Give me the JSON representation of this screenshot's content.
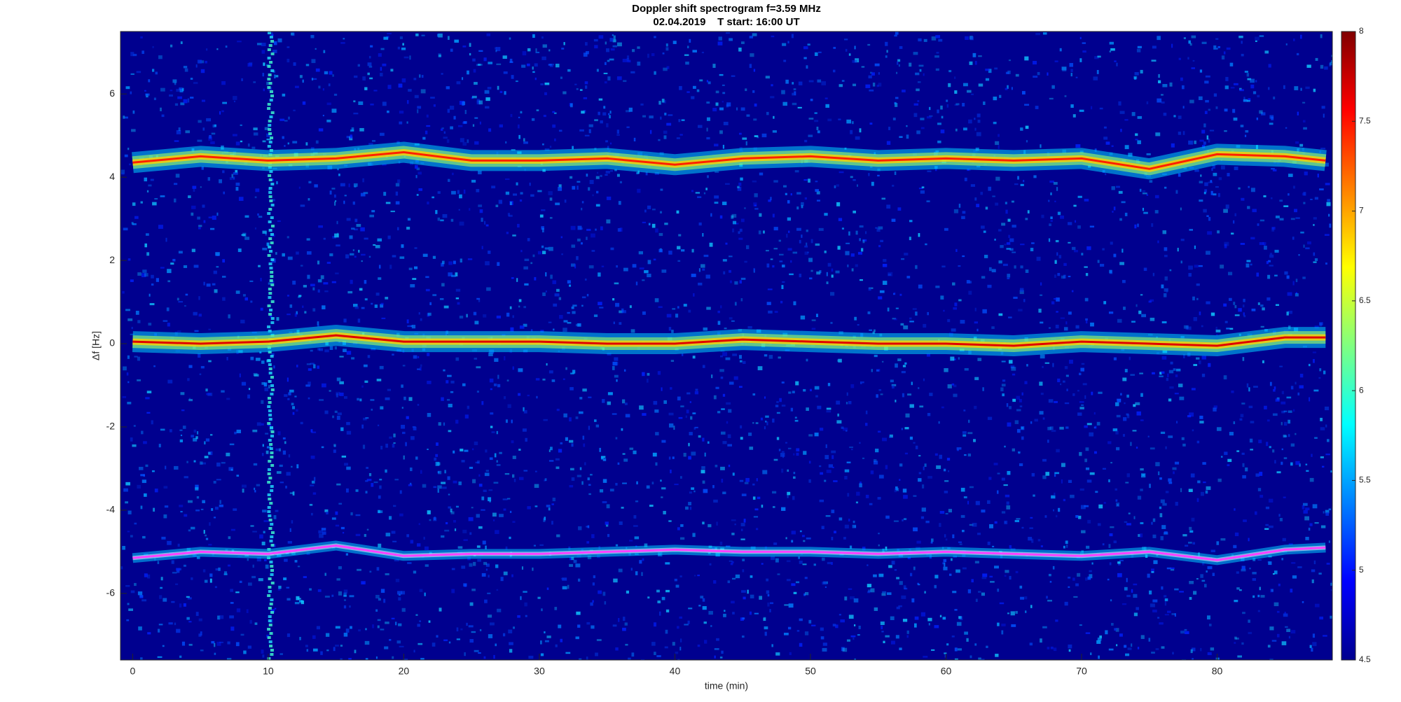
{
  "chart_data": {
    "type": "spectrogram",
    "title": "Doppler shift spectrogram f=3.59 MHz",
    "subtitle": "02.04.2019    T start: 16:00 UT",
    "x_label": "time (min)",
    "y_label": "Δf [Hz]",
    "xlim": [
      -0.9,
      88.5
    ],
    "xticks": [
      0,
      10,
      20,
      30,
      40,
      50,
      60,
      70,
      80
    ],
    "ylim": [
      -7.6,
      7.5
    ],
    "yticks": [
      -6,
      -4,
      -2,
      0,
      2,
      4,
      6
    ],
    "colormap": "jet",
    "clim": [
      4.5,
      8
    ],
    "cticks": [
      4.5,
      5,
      5.5,
      6,
      6.5,
      7,
      7.5,
      8
    ],
    "x": [
      0,
      5,
      10,
      15,
      20,
      25,
      30,
      35,
      40,
      45,
      50,
      55,
      60,
      65,
      70,
      75,
      80,
      85,
      88
    ],
    "series": [
      {
        "color": "#ff2000",
        "values": [
          4.35,
          4.5,
          4.4,
          4.45,
          4.6,
          4.4,
          4.4,
          4.45,
          4.3,
          4.45,
          4.5,
          4.4,
          4.45,
          4.4,
          4.45,
          4.2,
          4.55,
          4.5,
          4.4
        ]
      },
      {
        "color": "#e00000",
        "values": [
          0.05,
          0.0,
          0.05,
          0.2,
          0.05,
          0.05,
          0.05,
          0.0,
          0.0,
          0.1,
          0.05,
          0.0,
          0.0,
          -0.05,
          0.05,
          0.0,
          -0.05,
          0.15,
          0.15
        ]
      },
      {
        "color": "#ff40ff",
        "values": [
          -5.15,
          -5.0,
          -5.05,
          -4.85,
          -5.1,
          -5.05,
          -5.05,
          -5.0,
          -4.95,
          -5.0,
          -5.0,
          -5.05,
          -5.0,
          -5.05,
          -5.1,
          -5.0,
          -5.2,
          -4.95,
          -4.9
        ]
      }
    ]
  }
}
